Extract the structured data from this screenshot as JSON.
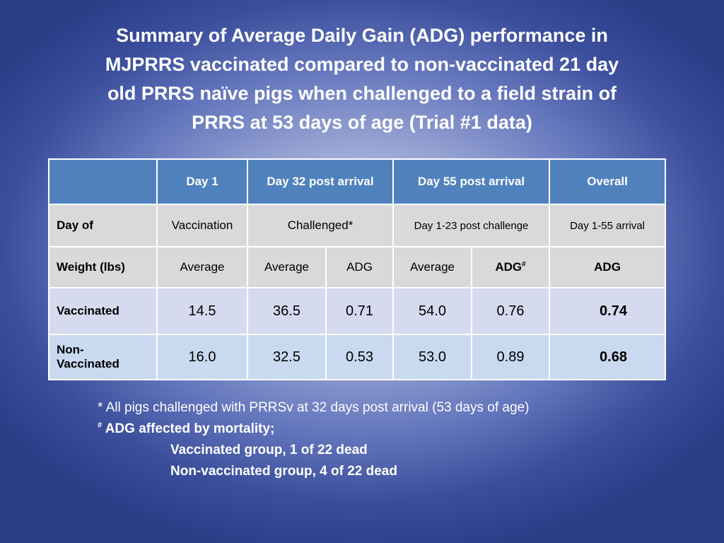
{
  "title": {
    "line1": "Summary of Average Daily Gain (ADG) performance in",
    "line2": "MJPRRS vaccinated compared to non-vaccinated 21 day",
    "line3": "old PRRS naïve pigs when challenged to a field strain of",
    "line4": "PRRS at 53 days of age (Trial #1 data)"
  },
  "table": {
    "header": {
      "day1": "Day 1",
      "day32": "Day 32 post arrival",
      "day55": "Day 55 post arrival",
      "overall": "Overall"
    },
    "day_of": {
      "label": "Day of",
      "day1": "Vaccination",
      "day32": "Challenged*",
      "day55": "Day 1-23 post challenge",
      "overall": "Day 1-55 arrival"
    },
    "weight": {
      "label": "Weight (lbs)",
      "c1": "Average",
      "c2": "Average",
      "c3": "ADG",
      "c4": "Average",
      "c5": "ADG",
      "c5_sup": "#",
      "c6": "ADG"
    },
    "rows": [
      {
        "label": "Vaccinated",
        "day1_avg": "14.5",
        "day32_avg": "36.5",
        "day32_adg": "0.71",
        "day55_avg": "54.0",
        "day55_adg": "0.76",
        "overall_adg": "0.74"
      },
      {
        "label_line1": "Non-",
        "label_line2": "Vaccinated",
        "day1_avg": "16.0",
        "day32_avg": "32.5",
        "day32_adg": "0.53",
        "day55_avg": "53.0",
        "day55_adg": "0.89",
        "overall_adg": "0.68"
      }
    ]
  },
  "footnotes": {
    "asterisk": "* All pigs challenged with PRRSv at 32 days post arrival (53 days of age)",
    "hash_symbol": "#",
    "hash_text": " ADG affected by mortality;",
    "vaccinated_dead": "Vaccinated group, 1 of 22 dead",
    "nonvaccinated_dead": "Non-vaccinated group, 4 of 22 dead"
  }
}
